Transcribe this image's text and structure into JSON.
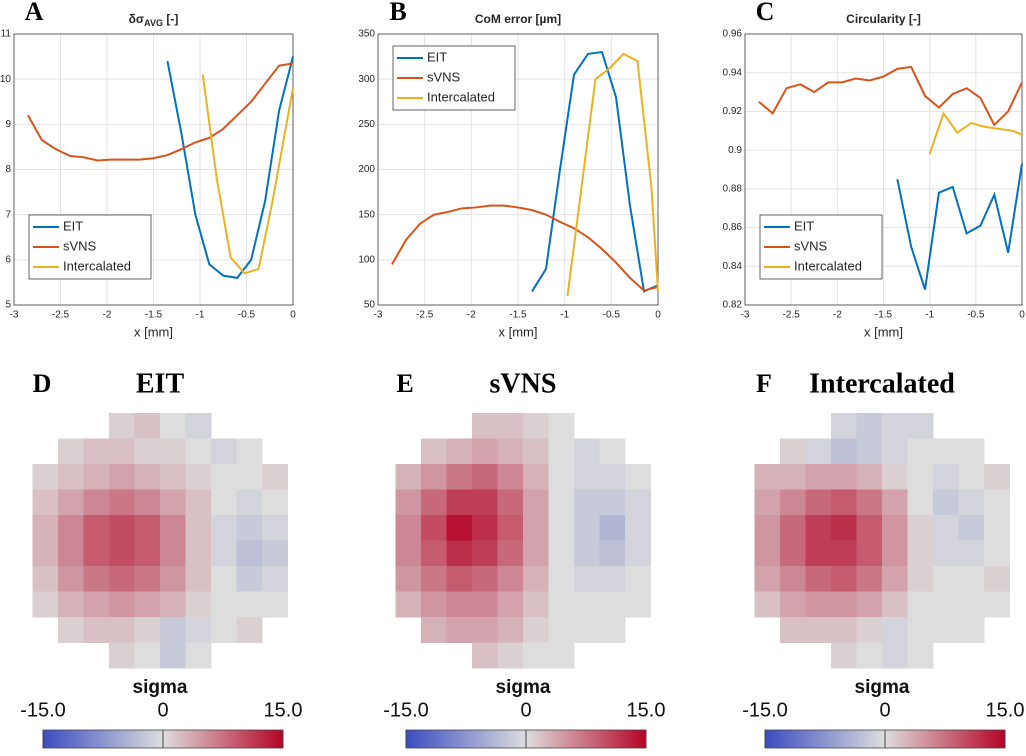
{
  "chart_data": [
    {
      "type": "line",
      "panel": "A",
      "title": "δσ",
      "title_subscript": "AVG",
      "title_suffix": " [-]",
      "xlabel": "x [mm]",
      "xlim": [
        -3,
        0
      ],
      "xticks": [
        -3,
        -2.5,
        -2,
        -1.5,
        -1,
        -0.5,
        0
      ],
      "ylim": [
        5,
        11
      ],
      "yticks": [
        5,
        6,
        7,
        8,
        9,
        10,
        11
      ],
      "grid": true,
      "legend": "lower left",
      "series": [
        {
          "name": "EIT",
          "color": "#0072bd",
          "x": [
            -1.35,
            -1.2,
            -1.05,
            -0.9,
            -0.75,
            -0.6,
            -0.45,
            -0.3,
            -0.15,
            0
          ],
          "values": [
            10.4,
            8.8,
            7.0,
            5.9,
            5.65,
            5.6,
            6.0,
            7.3,
            9.3,
            10.5
          ]
        },
        {
          "name": "sVNS",
          "color": "#d95319",
          "x": [
            -2.85,
            -2.7,
            -2.55,
            -2.4,
            -2.25,
            -2.1,
            -1.95,
            -1.8,
            -1.65,
            -1.5,
            -1.35,
            -1.2,
            -1.05,
            -0.9,
            -0.75,
            -0.6,
            -0.45,
            -0.3,
            -0.15,
            0
          ],
          "values": [
            9.2,
            8.65,
            8.45,
            8.3,
            8.27,
            8.2,
            8.22,
            8.22,
            8.22,
            8.25,
            8.32,
            8.45,
            8.6,
            8.7,
            8.9,
            9.2,
            9.5,
            9.9,
            10.3,
            10.35
          ]
        },
        {
          "name": "Intercalated",
          "color": "#edb120",
          "x": [
            -0.97,
            -0.82,
            -0.67,
            -0.52,
            -0.37,
            -0.22,
            0
          ],
          "values": [
            10.1,
            7.8,
            6.05,
            5.7,
            5.8,
            7.3,
            9.8
          ]
        }
      ]
    },
    {
      "type": "line",
      "panel": "B",
      "title": "CoM error [µm]",
      "xlabel": "x [mm]",
      "xlim": [
        -3,
        0
      ],
      "xticks": [
        -3,
        -2.5,
        -2,
        -1.5,
        -1,
        -0.5,
        0
      ],
      "ylim": [
        50,
        350
      ],
      "yticks": [
        50,
        100,
        150,
        200,
        250,
        300,
        350
      ],
      "grid": true,
      "legend": "upper left",
      "series": [
        {
          "name": "EIT",
          "color": "#0072bd",
          "x": [
            -1.35,
            -1.2,
            -1.05,
            -0.9,
            -0.75,
            -0.6,
            -0.45,
            -0.3,
            -0.15,
            0
          ],
          "values": [
            65,
            90,
            200,
            305,
            328,
            330,
            280,
            160,
            65,
            72
          ]
        },
        {
          "name": "sVNS",
          "color": "#d95319",
          "x": [
            -2.85,
            -2.7,
            -2.55,
            -2.4,
            -2.25,
            -2.1,
            -1.95,
            -1.8,
            -1.65,
            -1.5,
            -1.35,
            -1.2,
            -1.05,
            -0.9,
            -0.75,
            -0.6,
            -0.45,
            -0.3,
            -0.15,
            0
          ],
          "values": [
            95,
            122,
            140,
            150,
            153,
            157,
            158,
            160,
            160,
            158,
            155,
            150,
            142,
            135,
            125,
            112,
            97,
            80,
            66,
            70
          ]
        },
        {
          "name": "Intercalated",
          "color": "#edb120",
          "x": [
            -0.97,
            -0.82,
            -0.67,
            -0.52,
            -0.37,
            -0.22,
            -0.07,
            0
          ],
          "values": [
            60,
            180,
            300,
            312,
            328,
            320,
            180,
            65
          ]
        }
      ]
    },
    {
      "type": "line",
      "panel": "C",
      "title": "Circularity [-]",
      "xlabel": "x [mm]",
      "xlim": [
        -3,
        0
      ],
      "xticks": [
        -3,
        -2.5,
        -2,
        -1.5,
        -1,
        -0.5,
        0
      ],
      "ylim": [
        0.82,
        0.96
      ],
      "yticks": [
        0.82,
        0.84,
        0.86,
        0.88,
        0.9,
        0.92,
        0.94,
        0.96
      ],
      "grid": true,
      "legend": "lower left",
      "series": [
        {
          "name": "EIT",
          "color": "#0072bd",
          "x": [
            -1.35,
            -1.2,
            -1.05,
            -0.9,
            -0.75,
            -0.6,
            -0.45,
            -0.3,
            -0.15,
            0
          ],
          "values": [
            0.885,
            0.85,
            0.828,
            0.878,
            0.881,
            0.857,
            0.861,
            0.877,
            0.847,
            0.893
          ]
        },
        {
          "name": "sVNS",
          "color": "#d95319",
          "x": [
            -2.85,
            -2.7,
            -2.55,
            -2.4,
            -2.25,
            -2.1,
            -1.95,
            -1.8,
            -1.65,
            -1.5,
            -1.35,
            -1.2,
            -1.05,
            -0.9,
            -0.75,
            -0.6,
            -0.45,
            -0.3,
            -0.15,
            0
          ],
          "values": [
            0.925,
            0.919,
            0.932,
            0.934,
            0.93,
            0.935,
            0.935,
            0.937,
            0.936,
            0.938,
            0.942,
            0.943,
            0.928,
            0.922,
            0.929,
            0.932,
            0.927,
            0.913,
            0.92,
            0.935
          ]
        },
        {
          "name": "Intercalated",
          "color": "#edb120",
          "x": [
            -1,
            -0.85,
            -0.7,
            -0.55,
            -0.4,
            -0.25,
            -0.1,
            0
          ],
          "values": [
            0.898,
            0.919,
            0.909,
            0.914,
            0.912,
            0.911,
            0.91,
            0.908
          ]
        }
      ]
    },
    {
      "type": "heatmap",
      "panel": "D",
      "title": "EIT",
      "colorbar_label": "sigma",
      "zlim": [
        -15,
        15
      ],
      "zticks": [
        {
          "value": -15,
          "label": "-15.0"
        },
        0,
        {
          "value": 15,
          "label": "15.0"
        }
      ],
      "colors": [
        "#3b4cc0",
        "#dddddd",
        "#b40426"
      ],
      "z": [
        [
          null,
          null,
          null,
          1,
          2,
          0,
          -1,
          null,
          null,
          null
        ],
        [
          null,
          1,
          2,
          2,
          1,
          1,
          0,
          -1,
          0,
          null
        ],
        [
          1,
          2,
          3,
          4,
          3,
          2,
          1,
          0,
          0,
          1
        ],
        [
          2,
          4,
          6,
          7,
          6,
          4,
          2,
          0,
          -1,
          0
        ],
        [
          3,
          6,
          9,
          10,
          9,
          6,
          2,
          -1,
          -2,
          -1
        ],
        [
          3,
          6,
          9,
          10,
          9,
          6,
          2,
          -1,
          -3,
          -2
        ],
        [
          2,
          5,
          7,
          8,
          7,
          5,
          2,
          0,
          -2,
          -1
        ],
        [
          1,
          3,
          4,
          5,
          4,
          3,
          1,
          0,
          0,
          0
        ],
        [
          null,
          1,
          2,
          2,
          1,
          -2,
          -1,
          0,
          1,
          null
        ],
        [
          null,
          null,
          null,
          1,
          0,
          -2,
          0,
          null,
          null,
          null
        ]
      ]
    },
    {
      "type": "heatmap",
      "panel": "E",
      "title": "sVNS",
      "colorbar_label": "sigma",
      "zlim": [
        -15,
        15
      ],
      "zticks": [
        {
          "value": -15,
          "label": "-15.0"
        },
        0,
        {
          "value": 15,
          "label": "15.0"
        }
      ],
      "colors": [
        "#3b4cc0",
        "#dddddd",
        "#b40426"
      ],
      "z": [
        [
          null,
          null,
          null,
          2,
          2,
          1,
          0,
          null,
          null,
          null
        ],
        [
          null,
          2,
          3,
          4,
          3,
          2,
          0,
          -1,
          0,
          null
        ],
        [
          3,
          5,
          7,
          8,
          6,
          3,
          0,
          -1,
          -1,
          0
        ],
        [
          5,
          8,
          11,
          11,
          8,
          4,
          0,
          -2,
          -2,
          -1
        ],
        [
          6,
          10,
          14,
          12,
          9,
          4,
          0,
          -2,
          -4,
          -1
        ],
        [
          6,
          9,
          12,
          11,
          8,
          4,
          0,
          -2,
          -3,
          -1
        ],
        [
          5,
          7,
          9,
          8,
          6,
          3,
          0,
          -1,
          -1,
          0
        ],
        [
          3,
          5,
          6,
          6,
          4,
          2,
          0,
          0,
          0,
          0
        ],
        [
          null,
          3,
          4,
          4,
          3,
          1,
          0,
          0,
          0,
          null
        ],
        [
          null,
          null,
          null,
          2,
          1,
          0,
          0,
          null,
          null,
          null
        ]
      ]
    },
    {
      "type": "heatmap",
      "panel": "F",
      "title": "Intercalated",
      "colorbar_label": "sigma",
      "zlim": [
        -15,
        15
      ],
      "zticks": [
        {
          "value": -15,
          "label": "-15.0"
        },
        0,
        {
          "value": 15,
          "label": "15.0"
        }
      ],
      "colors": [
        "#3b4cc0",
        "#dddddd",
        "#b40426"
      ],
      "z": [
        [
          null,
          null,
          null,
          -1,
          -2,
          -1,
          -1,
          null,
          null,
          null
        ],
        [
          null,
          1,
          -1,
          -3,
          -2,
          -1,
          0,
          0,
          0,
          null
        ],
        [
          3,
          3,
          4,
          4,
          3,
          1,
          0,
          -1,
          0,
          1
        ],
        [
          4,
          6,
          8,
          9,
          7,
          4,
          0,
          -2,
          -1,
          0
        ],
        [
          5,
          8,
          11,
          12,
          9,
          5,
          1,
          -1,
          -2,
          0
        ],
        [
          5,
          8,
          11,
          11,
          9,
          5,
          1,
          -1,
          -1,
          0
        ],
        [
          4,
          6,
          8,
          9,
          7,
          4,
          1,
          0,
          0,
          1
        ],
        [
          2,
          4,
          5,
          5,
          4,
          2,
          0,
          0,
          0,
          0
        ],
        [
          null,
          2,
          2,
          2,
          1,
          -1,
          0,
          0,
          0,
          null
        ],
        [
          null,
          null,
          null,
          1,
          0,
          -1,
          0,
          null,
          null,
          null
        ]
      ]
    }
  ]
}
